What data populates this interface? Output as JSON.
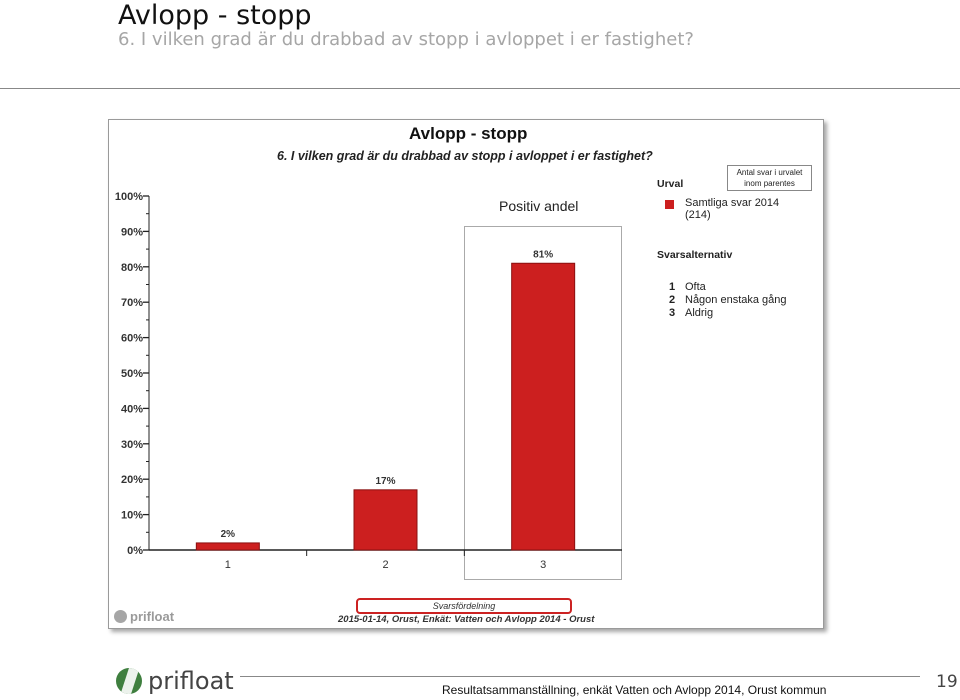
{
  "slide": {
    "title": "Avlopp - stopp",
    "subtitle": "6. I vilken grad är du drabbad av stopp i avloppet i er fastighet?",
    "footer": "Resultatsammanställning, enkät Vatten och Avlopp 2014, Orust kommun",
    "page_number": "19",
    "logo_text": "prifloat"
  },
  "panel": {
    "positive_label": "Positiv andel",
    "note": "Antal svar i urvalet inom parentes",
    "selection_heading": "Urval",
    "series_label": "Samtliga svar 2014",
    "series_count": "(214)",
    "answers_heading": "Svarsalternativ",
    "answers": [
      {
        "num": "1",
        "label": "Ofta"
      },
      {
        "num": "2",
        "label": "Någon enstaka gång"
      },
      {
        "num": "3",
        "label": "Aldrig"
      }
    ],
    "footer_label": "Svarsfördelning",
    "footer_meta": "2015-01-14, Orust, Enkät: Vatten och Avlopp 2014 - Orust",
    "logo_text": "prifloat"
  },
  "colors": {
    "bar": "#cc1f1f",
    "bar_border": "#8a1010"
  },
  "chart_data": {
    "type": "bar",
    "title": "Avlopp - stopp",
    "subtitle": "6. I vilken grad är du drabbad av stopp i avloppet i er fastighet?",
    "categories": [
      "1",
      "2",
      "3"
    ],
    "values": [
      2,
      17,
      81
    ],
    "value_labels": [
      "2%",
      "17%",
      "81%"
    ],
    "y_ticks": [
      "0%",
      "10%",
      "20%",
      "30%",
      "40%",
      "50%",
      "60%",
      "70%",
      "80%",
      "90%",
      "100%"
    ],
    "ylim": [
      0,
      100
    ],
    "grid": false,
    "legend": "right"
  }
}
